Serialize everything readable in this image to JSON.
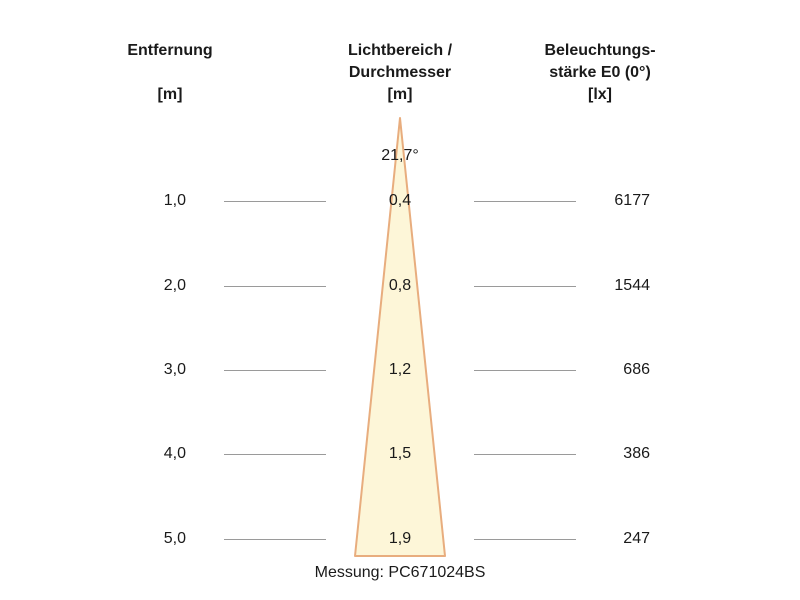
{
  "headers": {
    "distance": {
      "line1": "Entfernung",
      "unit": "[m]"
    },
    "beam": {
      "line1": "Lichtbereich /",
      "line2": "Durchmesser",
      "unit": "[m]"
    },
    "illuminance": {
      "line1": "Beleuchtungs-",
      "line2": "stärke E0 (0°)",
      "unit": "[lx]"
    }
  },
  "beam_angle": "21,7°",
  "rows": [
    {
      "distance": "1,0",
      "diameter": "0,4",
      "lux": "6177"
    },
    {
      "distance": "2,0",
      "diameter": "0,8",
      "lux": "1544"
    },
    {
      "distance": "3,0",
      "diameter": "1,2",
      "lux": "686"
    },
    {
      "distance": "4,0",
      "diameter": "1,5",
      "lux": "386"
    },
    {
      "distance": "5,0",
      "diameter": "1,9",
      "lux": "247"
    }
  ],
  "footer": "Messung: PC671024BS",
  "colors": {
    "beam_fill": "#fdf6d8",
    "beam_edge": "#e8ad7e",
    "rule": "#9a9a9a"
  }
}
